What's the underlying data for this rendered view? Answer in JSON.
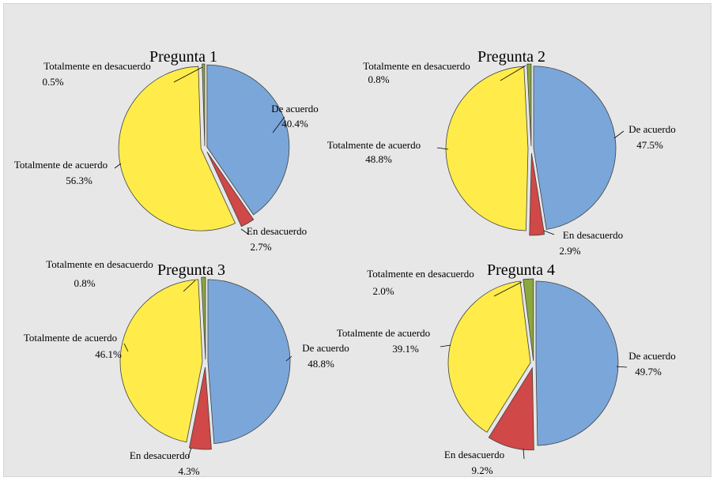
{
  "chart_data": [
    {
      "type": "pie",
      "title": "Pregunta 1",
      "slices": [
        {
          "label": "De acuerdo",
          "value": 40.4,
          "value_label": "40.4%",
          "color": "#7ba6d9"
        },
        {
          "label": "En desacuerdo",
          "value": 2.7,
          "value_label": "2.7%",
          "color": "#d04848"
        },
        {
          "label": "Totalmente de acuerdo",
          "value": 56.3,
          "value_label": "56.3%",
          "color": "#ffec4a"
        },
        {
          "label": "Totalmente en desacuerdo",
          "value": 0.5,
          "value_label": "0.5%",
          "color": "#8aa83e"
        }
      ]
    },
    {
      "type": "pie",
      "title": "Pregunta 2",
      "slices": [
        {
          "label": "De acuerdo",
          "value": 47.5,
          "value_label": "47.5%",
          "color": "#7ba6d9"
        },
        {
          "label": "En desacuerdo",
          "value": 2.9,
          "value_label": "2.9%",
          "color": "#d04848"
        },
        {
          "label": "Totalmente de acuerdo",
          "value": 48.8,
          "value_label": "48.8%",
          "color": "#ffec4a"
        },
        {
          "label": "Totalmente en desacuerdo",
          "value": 0.8,
          "value_label": "0.8%",
          "color": "#8aa83e"
        }
      ]
    },
    {
      "type": "pie",
      "title": "Pregunta 3",
      "slices": [
        {
          "label": "De acuerdo",
          "value": 48.8,
          "value_label": "48.8%",
          "color": "#7ba6d9"
        },
        {
          "label": "En desacuerdo",
          "value": 4.3,
          "value_label": "4.3%",
          "color": "#d04848"
        },
        {
          "label": "Totalmente de acuerdo",
          "value": 46.1,
          "value_label": "46.1%",
          "color": "#ffec4a"
        },
        {
          "label": "Totalmente en desacuerdo",
          "value": 0.8,
          "value_label": "0.8%",
          "color": "#8aa83e"
        }
      ]
    },
    {
      "type": "pie",
      "title": "Pregunta 4",
      "slices": [
        {
          "label": "De acuerdo",
          "value": 49.7,
          "value_label": "49.7%",
          "color": "#7ba6d9"
        },
        {
          "label": "En desacuerdo",
          "value": 9.2,
          "value_label": "9.2%",
          "color": "#d04848"
        },
        {
          "label": "Totalmente de acuerdo",
          "value": 39.1,
          "value_label": "39.1%",
          "color": "#ffec4a"
        },
        {
          "label": "Totalmente en desacuerdo",
          "value": 2.0,
          "value_label": "2.0%",
          "color": "#8aa83e"
        }
      ]
    }
  ]
}
